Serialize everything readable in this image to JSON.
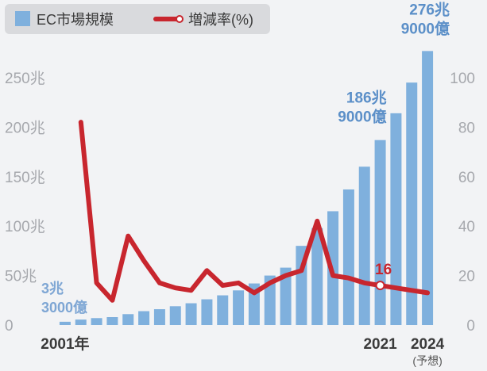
{
  "chart_data": {
    "type": "bar+line",
    "legend": {
      "placement": "top-left",
      "items": [
        {
          "label": "EC市場規模",
          "kind": "bar",
          "color": "#7fb0dd"
        },
        {
          "label": "増減率(%)",
          "kind": "line",
          "color": "#c8262e"
        }
      ]
    },
    "x": [
      2001,
      2002,
      2003,
      2004,
      2005,
      2006,
      2007,
      2008,
      2009,
      2010,
      2011,
      2012,
      2013,
      2014,
      2015,
      2016,
      2017,
      2018,
      2019,
      2020,
      2021,
      2022,
      2023,
      2024
    ],
    "x_tick_labels": [
      {
        "x": 2001,
        "text": "2001年"
      },
      {
        "x": 2021,
        "text": "2021"
      },
      {
        "x": 2024,
        "text": "2024",
        "sub": "(予想)"
      }
    ],
    "series": [
      {
        "name": "EC市場規模",
        "axis": "left",
        "unit": "兆円",
        "values": [
          3.3,
          5.5,
          7,
          8,
          11,
          14,
          16,
          19,
          22,
          26,
          30,
          35,
          42,
          50,
          58,
          80,
          98,
          115,
          137,
          160,
          186.9,
          214,
          245,
          276.9
        ]
      },
      {
        "name": "増減率(%)",
        "axis": "right",
        "unit": "%",
        "values": [
          null,
          82,
          17,
          10,
          36,
          26,
          17,
          15,
          14,
          22,
          16,
          17,
          13,
          17,
          20,
          22,
          42,
          20,
          19,
          17,
          16,
          15,
          14,
          13
        ]
      }
    ],
    "y_left": {
      "ylim": [
        0,
        290
      ],
      "ticks": [
        0,
        50,
        100,
        150,
        200,
        250
      ],
      "tick_labels": [
        "0",
        "50兆",
        "100兆",
        "150兆",
        "200兆",
        "250兆"
      ]
    },
    "y_right": {
      "ylim": [
        0,
        116
      ],
      "ticks": [
        0,
        20,
        40,
        60,
        80,
        100
      ],
      "tick_labels": [
        "0",
        "20",
        "40",
        "60",
        "80",
        "100"
      ]
    },
    "annotations": [
      {
        "x": 2001,
        "lines": [
          "3兆",
          "3000億"
        ],
        "color": "#7ea6d4"
      },
      {
        "x": 2021,
        "lines": [
          "186兆",
          "9000億"
        ],
        "color": "#5b8fc8"
      },
      {
        "x": 2024,
        "lines": [
          "276兆",
          "9000億"
        ],
        "color": "#5b8fc8"
      },
      {
        "x": 2021,
        "lines": [
          "16"
        ],
        "color": "#c8262e",
        "series": "増減率(%)"
      }
    ],
    "grid": false
  }
}
